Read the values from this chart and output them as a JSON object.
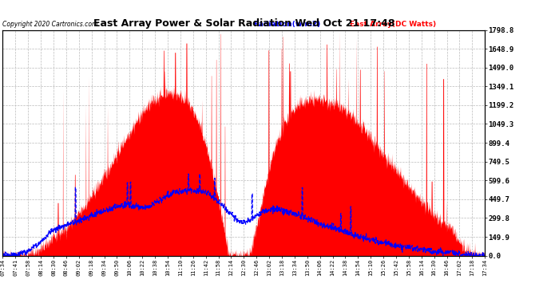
{
  "title": "East Array Power & Solar Radiation Wed Oct 21 17:48",
  "copyright": "Copyright 2020 Cartronics.com",
  "legend_radiation": "Radiation(w/m2)",
  "legend_east_array": "East Array(DC Watts)",
  "legend_radiation_color": "blue",
  "legend_east_array_color": "red",
  "y_max": 1798.8,
  "y_min": 0.0,
  "y_ticks": [
    0.0,
    149.9,
    299.8,
    449.7,
    599.6,
    749.5,
    899.4,
    1049.3,
    1199.2,
    1349.1,
    1499.0,
    1648.9,
    1798.8
  ],
  "background_color": "#ffffff",
  "plot_bg_color": "#ffffff",
  "grid_color": "#bbbbbb",
  "fill_color": "red",
  "line_color": "blue",
  "title_fontsize": 10,
  "x_tick_labels": [
    "07:34",
    "07:41",
    "07:58",
    "08:14",
    "08:30",
    "08:46",
    "09:02",
    "09:18",
    "09:34",
    "09:50",
    "10:06",
    "10:22",
    "10:38",
    "10:54",
    "11:10",
    "11:26",
    "11:42",
    "11:58",
    "12:14",
    "12:30",
    "12:46",
    "13:02",
    "13:18",
    "13:34",
    "13:50",
    "14:06",
    "14:22",
    "14:38",
    "14:54",
    "15:10",
    "15:26",
    "15:42",
    "15:58",
    "16:14",
    "16:30",
    "16:46",
    "17:02",
    "17:18",
    "17:34"
  ]
}
